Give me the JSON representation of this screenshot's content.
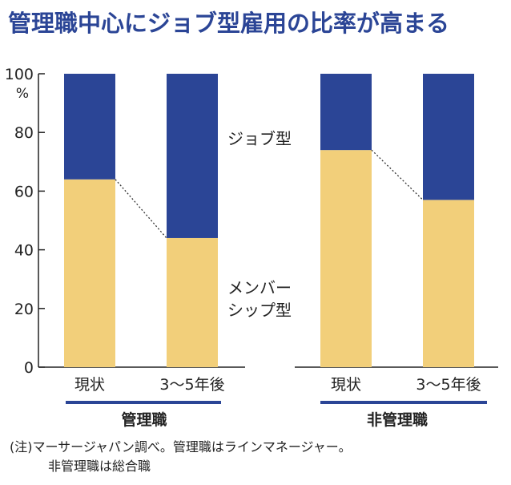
{
  "title": "管理職中心にジョブ型雇用の比率が高まる",
  "unit": "%",
  "colors": {
    "job": "#2b4596",
    "member": "#f2cf7a",
    "accent": "#2b4596"
  },
  "chart_data": [
    {
      "type": "bar",
      "stacked": true,
      "group_label": "管理職",
      "categories": [
        "現状",
        "3〜5年後"
      ],
      "series": [
        {
          "name": "メンバーシップ型",
          "values": [
            64,
            44
          ]
        },
        {
          "name": "ジョブ型",
          "values": [
            36,
            56
          ]
        }
      ],
      "ylim": [
        0,
        100
      ],
      "yticks": [
        "0",
        "20",
        "40",
        "60",
        "80",
        "100"
      ]
    },
    {
      "type": "bar",
      "stacked": true,
      "group_label": "非管理職",
      "categories": [
        "現状",
        "3〜5年後"
      ],
      "series": [
        {
          "name": "メンバーシップ型",
          "values": [
            74,
            57
          ]
        },
        {
          "name": "ジョブ型",
          "values": [
            26,
            43
          ]
        }
      ],
      "ylim": [
        0,
        100
      ]
    }
  ],
  "legend_labels": {
    "job": "ジョブ型",
    "member_line1": "メンバー",
    "member_line2": "シップ型"
  },
  "note": {
    "line1": "(注)マーサージャパン調べ。管理職はラインマネージャー。",
    "line2": "非管理職は総合職"
  }
}
